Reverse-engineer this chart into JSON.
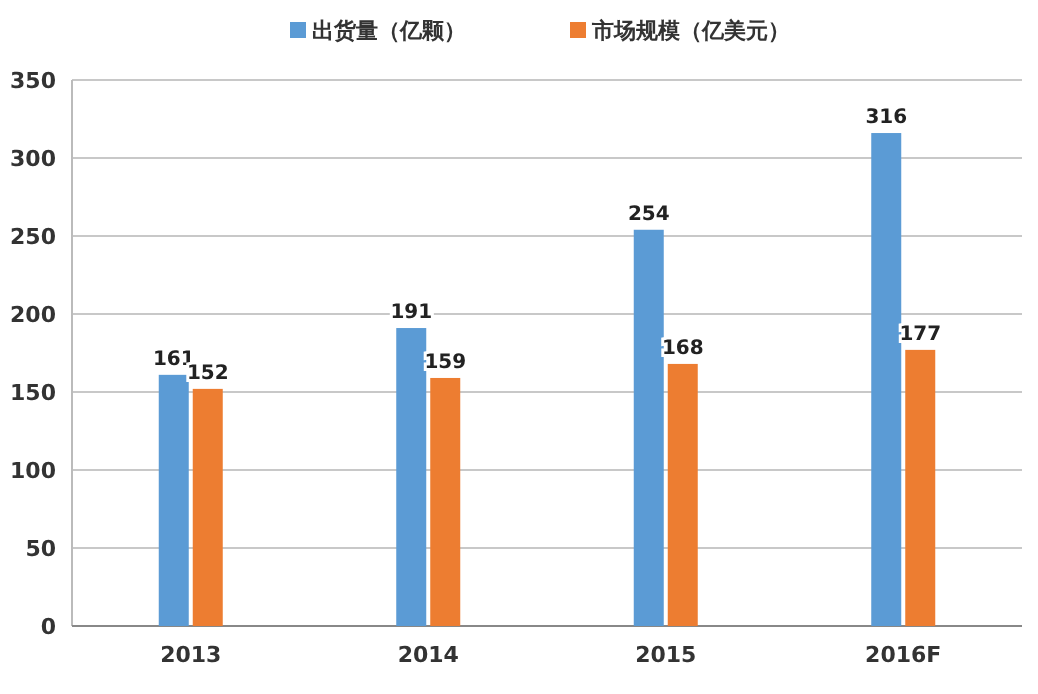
{
  "chart_data": {
    "type": "bar",
    "categories": [
      "2013",
      "2014",
      "2015",
      "2016F"
    ],
    "series": [
      {
        "name": "出货量（亿颗）",
        "color": "#5b9bd5",
        "values": [
          161,
          191,
          254,
          316
        ]
      },
      {
        "name": "市场规模（亿美元）",
        "color": "#ed7d31",
        "values": [
          152,
          159,
          168,
          177
        ]
      }
    ],
    "ylim": [
      0,
      350
    ],
    "yticks": [
      0,
      50,
      100,
      150,
      200,
      250,
      300,
      350
    ],
    "grid": "y",
    "legend": "top",
    "data_labels": true
  }
}
